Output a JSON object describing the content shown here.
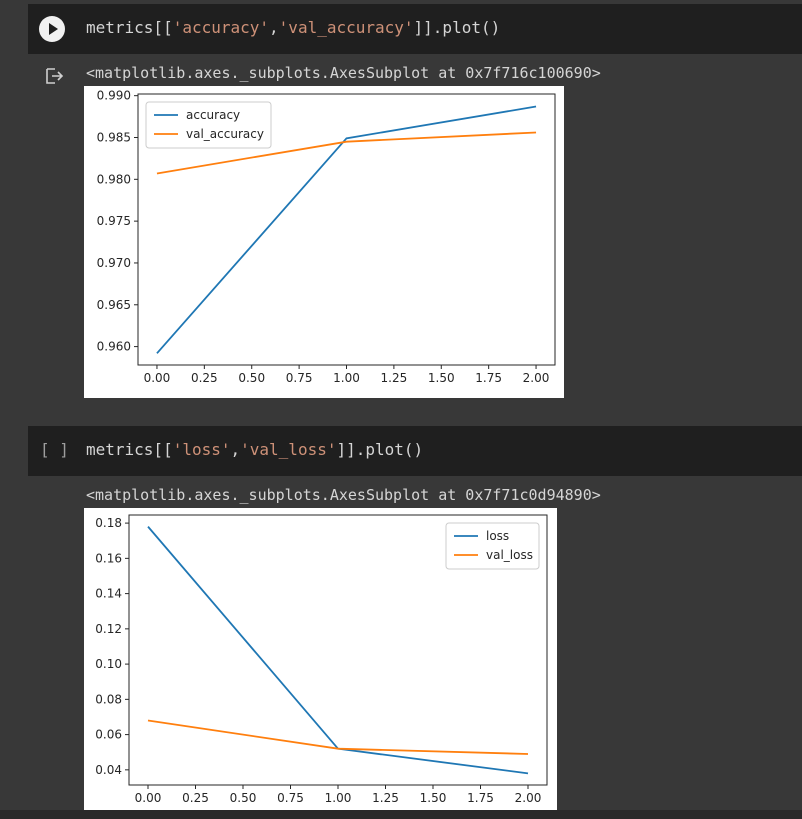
{
  "cells": [
    {
      "code": {
        "p1": "metrics[[",
        "s1": "'accuracy'",
        "comma": ",",
        "s2": "'val_accuracy'",
        "p2": "]].plot()"
      },
      "output_text": "<matplotlib.axes._subplots.AxesSubplot at 0x7f716c100690>"
    },
    {
      "exec_count": "[ ]",
      "code": {
        "p1": "metrics[[",
        "s1": "'loss'",
        "comma": ",",
        "s2": "'val_loss'",
        "p2": "]].plot()"
      },
      "output_text": "<matplotlib.axes._subplots.AxesSubplot at 0x7f71c0d94890>"
    }
  ],
  "icons": {
    "run": "play-icon",
    "output": "output-redirect-icon"
  },
  "chart_data": [
    {
      "type": "line",
      "x": [
        0,
        1,
        2
      ],
      "series": [
        {
          "name": "accuracy",
          "values": [
            0.9592,
            0.9849,
            0.9887
          ],
          "color": "#1f77b4"
        },
        {
          "name": "val_accuracy",
          "values": [
            0.9807,
            0.9845,
            0.9856
          ],
          "color": "#ff7f0e"
        }
      ],
      "xticks": [
        "0.00",
        "0.25",
        "0.50",
        "0.75",
        "1.00",
        "1.25",
        "1.50",
        "1.75",
        "2.00"
      ],
      "yticks": [
        "0.960",
        "0.965",
        "0.970",
        "0.975",
        "0.980",
        "0.985",
        "0.990"
      ],
      "xlim": [
        -0.1,
        2.1
      ],
      "ylim": [
        0.9578,
        0.9902
      ],
      "legend": "upper-left"
    },
    {
      "type": "line",
      "x": [
        0,
        1,
        2
      ],
      "series": [
        {
          "name": "loss",
          "values": [
            0.178,
            0.052,
            0.038
          ],
          "color": "#1f77b4"
        },
        {
          "name": "val_loss",
          "values": [
            0.068,
            0.052,
            0.049
          ],
          "color": "#ff7f0e"
        }
      ],
      "xticks": [
        "0.00",
        "0.25",
        "0.50",
        "0.75",
        "1.00",
        "1.25",
        "1.50",
        "1.75",
        "2.00"
      ],
      "yticks": [
        "0.04",
        "0.06",
        "0.08",
        "0.10",
        "0.12",
        "0.14",
        "0.16",
        "0.18"
      ],
      "xlim": [
        -0.1,
        2.1
      ],
      "ylim": [
        0.0314,
        0.1846
      ],
      "legend": "upper-right"
    }
  ]
}
